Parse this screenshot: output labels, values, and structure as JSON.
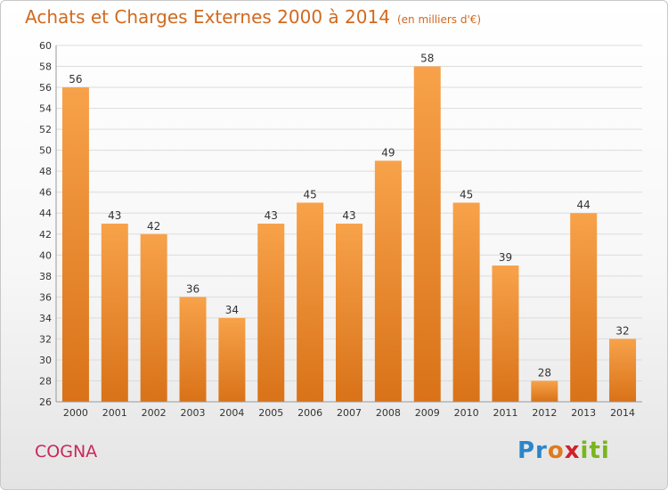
{
  "title": "Achats et Charges Externes 2000 à 2014",
  "subtitle": "(en milliers d'€)",
  "commune": "COGNA",
  "logo": {
    "p": "Pr",
    "o": "o",
    "x": "x",
    "iti": "iti"
  },
  "colors": {
    "bar_top": "#f7a24a",
    "bar_bottom": "#d97218",
    "title": "#d2691e",
    "commune": "#c8285a"
  },
  "chart_data": {
    "type": "bar",
    "categories": [
      "2000",
      "2001",
      "2002",
      "2003",
      "2004",
      "2005",
      "2006",
      "2007",
      "2008",
      "2009",
      "2010",
      "2011",
      "2012",
      "2013",
      "2014"
    ],
    "values": [
      56,
      43,
      42,
      36,
      34,
      43,
      45,
      43,
      49,
      58,
      45,
      39,
      28,
      44,
      32
    ],
    "ylim": [
      26,
      60
    ],
    "yticks": [
      26,
      28,
      30,
      32,
      34,
      36,
      38,
      40,
      42,
      44,
      46,
      48,
      50,
      52,
      54,
      56,
      58,
      60
    ],
    "grid": true,
    "legend": "none"
  }
}
